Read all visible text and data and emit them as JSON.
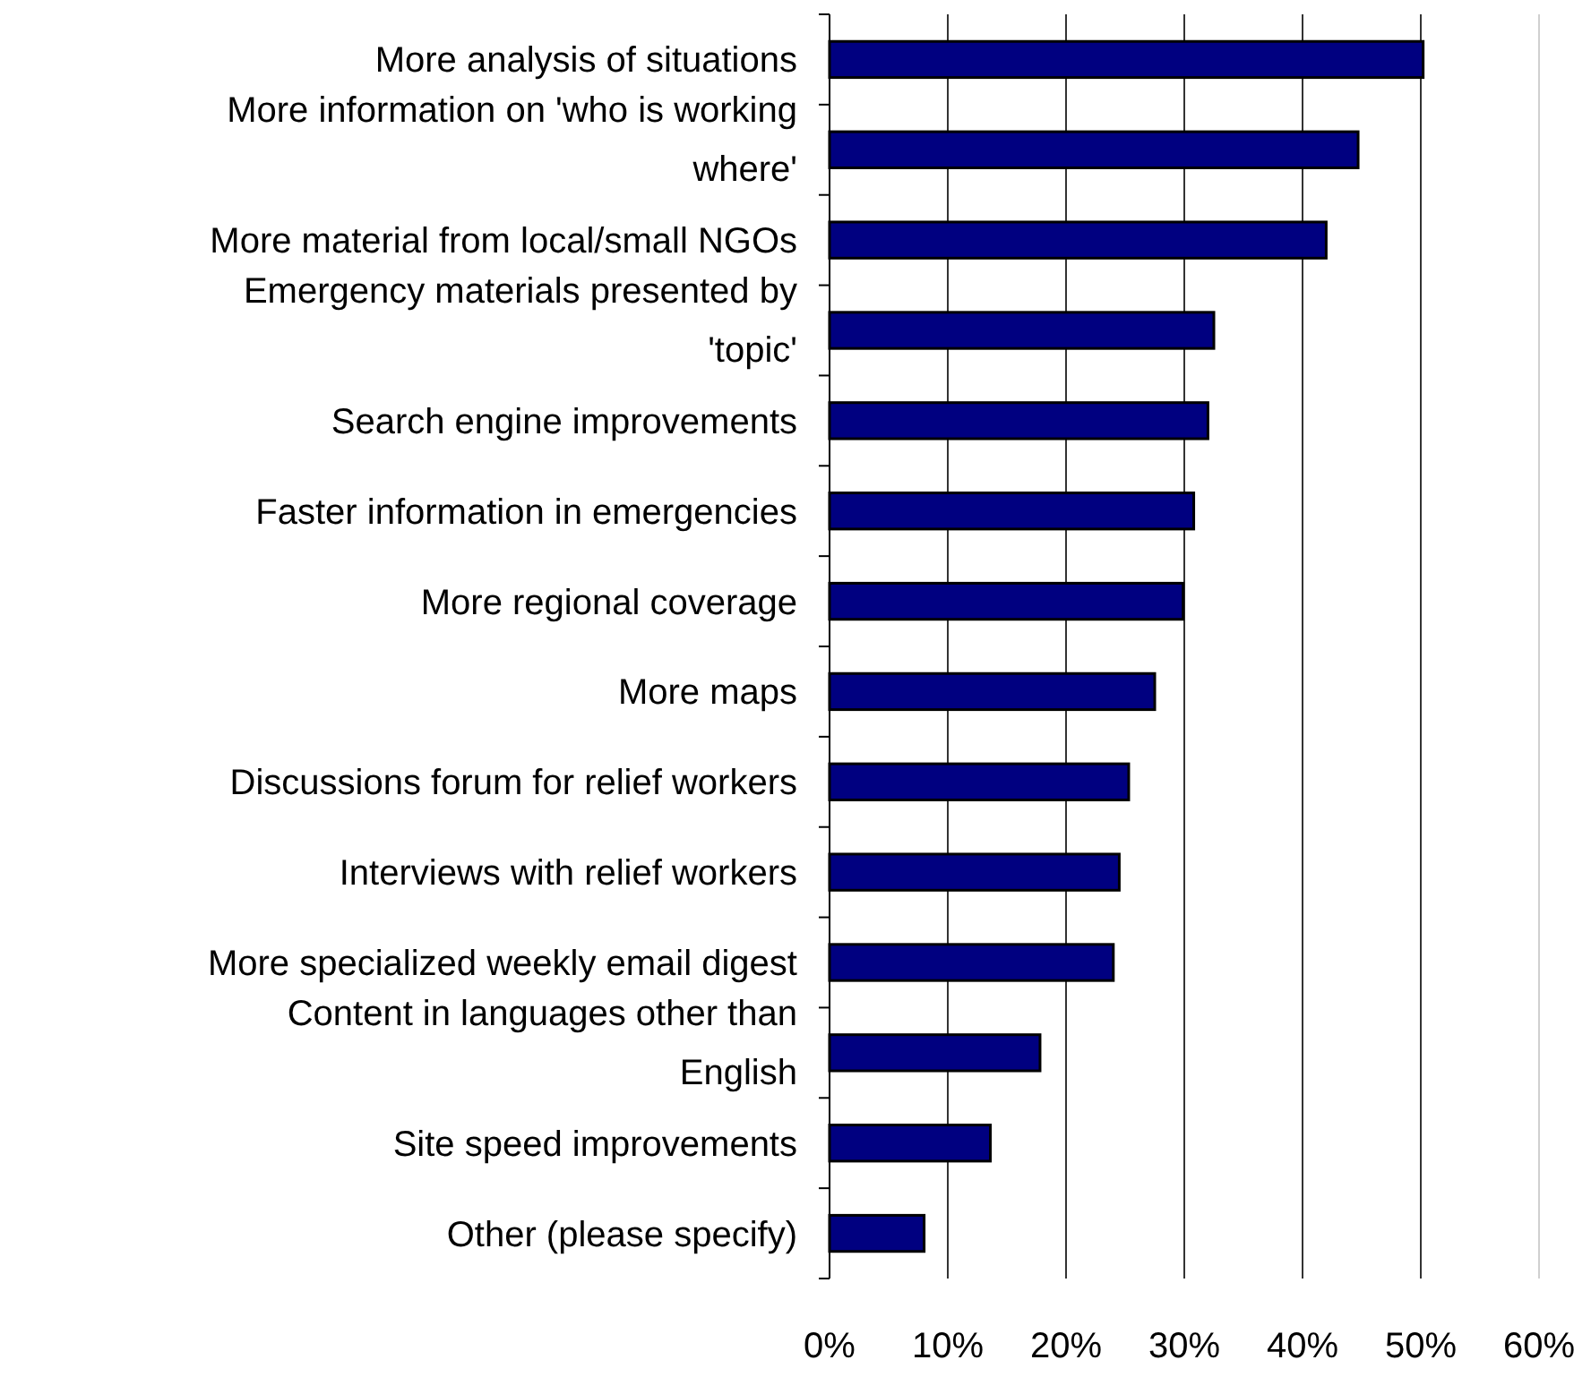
{
  "chart_data": {
    "type": "bar",
    "orientation": "horizontal",
    "categories": [
      "More analysis of situations",
      "More information on 'who is working where'",
      "More material from local/small NGOs",
      "Emergency materials presented by 'topic'",
      "Search engine improvements",
      "Faster information in emergencies",
      "More regional coverage",
      "More maps",
      "Discussions forum for relief workers",
      "Interviews with relief workers",
      "More specialized weekly email digest",
      "Content in languages other than English",
      "Site speed improvements",
      "Other (please specify)"
    ],
    "values": [
      50.2,
      44.7,
      42.0,
      32.5,
      32.0,
      30.8,
      29.9,
      27.5,
      25.3,
      24.5,
      24.0,
      17.8,
      13.6,
      8.0
    ],
    "color": "#000080",
    "xlim": [
      0,
      60
    ],
    "xticks": [
      {
        "value": 0,
        "label": "0%"
      },
      {
        "value": 10,
        "label": "10%"
      },
      {
        "value": 20,
        "label": "20%"
      },
      {
        "value": 30,
        "label": "30%"
      },
      {
        "value": 40,
        "label": "40%"
      },
      {
        "value": 50,
        "label": "50%"
      },
      {
        "value": 60,
        "label": "60%"
      }
    ],
    "grid": "x"
  }
}
